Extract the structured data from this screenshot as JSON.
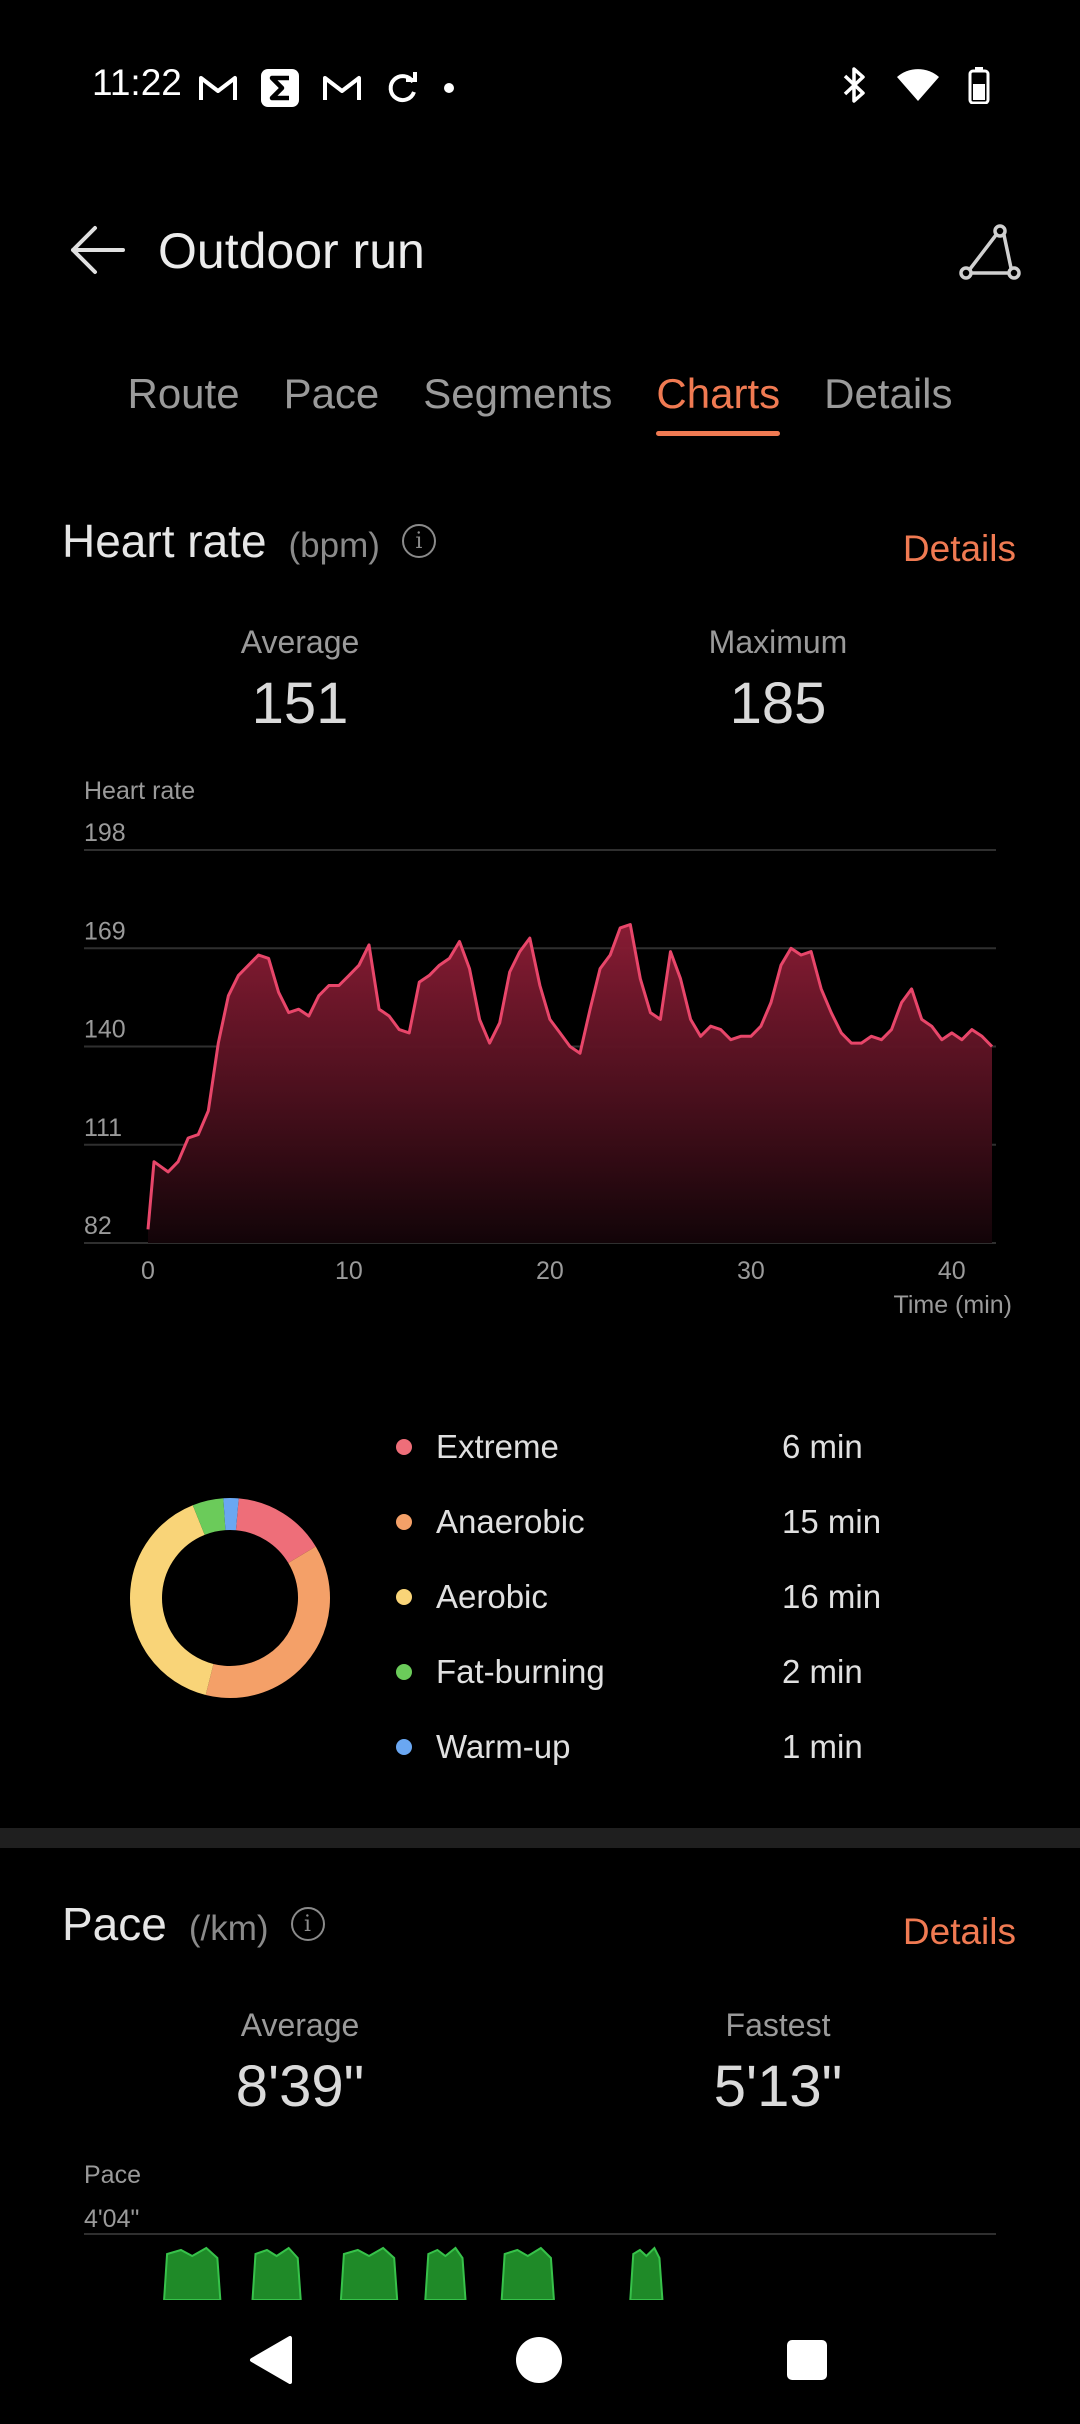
{
  "status_bar": {
    "time": "11:22",
    "left_icons": [
      "gmail-icon",
      "sigma-app-icon",
      "gmail-icon",
      "sync-icon",
      "dot-icon"
    ],
    "right_icons": [
      "bluetooth-icon",
      "wifi-icon",
      "battery-icon"
    ]
  },
  "header": {
    "title": "Outdoor run",
    "back_icon": "arrow-left-icon",
    "route_icon": "route-icon"
  },
  "tabs": [
    {
      "label": "Route",
      "active": false
    },
    {
      "label": "Pace",
      "active": false
    },
    {
      "label": "Segments",
      "active": false
    },
    {
      "label": "Charts",
      "active": true
    },
    {
      "label": "Details",
      "active": false
    }
  ],
  "heart_rate": {
    "title": "Heart rate",
    "unit": "(bpm)",
    "details_label": "Details",
    "average_label": "Average",
    "average_value": "151",
    "maximum_label": "Maximum",
    "maximum_value": "185"
  },
  "chart_data": [
    {
      "type": "area",
      "ylabel": "Heart rate",
      "xlabel": "Time (min)",
      "yticks": [
        "198",
        "169",
        "140",
        "111",
        "82"
      ],
      "xticks": [
        "0",
        "10",
        "20",
        "30",
        "40"
      ],
      "ylim": [
        82,
        198
      ],
      "xlim": [
        0,
        42
      ],
      "grid": true,
      "color": "#e8466a",
      "x": [
        0,
        0.3,
        1,
        1.5,
        2,
        2.5,
        3,
        3.5,
        4,
        4.5,
        5,
        5.5,
        6,
        6.5,
        7,
        7.5,
        8,
        8.5,
        9,
        9.5,
        10,
        10.5,
        11,
        11.5,
        12,
        12.5,
        13,
        13.5,
        14,
        14.5,
        15,
        15.5,
        16,
        16.5,
        17,
        17.5,
        18,
        18.5,
        19,
        19.5,
        20,
        20.5,
        21,
        21.5,
        22,
        22.5,
        23,
        23.5,
        24,
        24.5,
        25,
        25.5,
        26,
        26.5,
        27,
        27.5,
        28,
        28.5,
        29,
        29.5,
        30,
        30.5,
        31,
        31.5,
        32,
        32.5,
        33,
        33.5,
        34,
        34.5,
        35,
        35.5,
        36,
        36.5,
        37,
        37.5,
        38,
        38.5,
        39,
        39.5,
        40,
        40.5,
        41,
        41.5,
        42
      ],
      "y": [
        86,
        106,
        103,
        106,
        113,
        114,
        121,
        141,
        155,
        161,
        164,
        167,
        166,
        156,
        150,
        151,
        149,
        155,
        158,
        158,
        161,
        164,
        170,
        151,
        149,
        145,
        144,
        159,
        161,
        164,
        166,
        171,
        163,
        148,
        141,
        147,
        162,
        168,
        172,
        158,
        148,
        144,
        140,
        138,
        151,
        163,
        167,
        175,
        176,
        160,
        150,
        148,
        168,
        160,
        148,
        143,
        146,
        145,
        142,
        143,
        143,
        146,
        153,
        164,
        169,
        167,
        168,
        157,
        150,
        144,
        141,
        141,
        143,
        142,
        145,
        153,
        157,
        148,
        146,
        142,
        144,
        142,
        145,
        143,
        140
      ]
    },
    {
      "type": "pie",
      "categories": [
        "Extreme",
        "Anaerobic",
        "Aerobic",
        "Fat-burning",
        "Warm-up"
      ],
      "values": [
        6,
        15,
        16,
        2,
        1
      ],
      "colors": [
        "#ee6e79",
        "#f4a068",
        "#f9d478",
        "#6bcb5a",
        "#6aa7f2"
      ]
    },
    {
      "type": "area",
      "ylabel": "Pace",
      "yticks": [
        "4'04\""
      ],
      "color": "#1f8a28",
      "segments": [
        [
          0.8,
          3.6
        ],
        [
          5.2,
          7.6
        ],
        [
          9.6,
          12.4
        ],
        [
          13.8,
          15.8
        ],
        [
          17.6,
          20.2
        ],
        [
          24.0,
          25.6
        ]
      ]
    }
  ],
  "zones": [
    {
      "name": "Extreme",
      "value": "6 min",
      "color": "#ee6e79"
    },
    {
      "name": "Anaerobic",
      "value": "15 min",
      "color": "#f4a068"
    },
    {
      "name": "Aerobic",
      "value": "16 min",
      "color": "#f9d478"
    },
    {
      "name": "Fat-burning",
      "value": "2 min",
      "color": "#6bcb5a"
    },
    {
      "name": "Warm-up",
      "value": "1 min",
      "color": "#6aa7f2"
    }
  ],
  "pace": {
    "title": "Pace",
    "unit": "(/km)",
    "details_label": "Details",
    "average_label": "Average",
    "average_value": "8'39\"",
    "fastest_label": "Fastest",
    "fastest_value": "5'13\""
  },
  "nav_bar": {
    "icons": [
      "back-triangle-icon",
      "home-circle-icon",
      "recents-square-icon"
    ]
  }
}
